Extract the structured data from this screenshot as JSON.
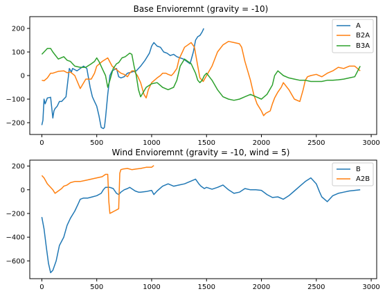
{
  "chart_data": [
    {
      "type": "line",
      "title": "Base Envioremnt (gravity = -10)",
      "xlabel": "",
      "ylabel": "",
      "xlim": [
        -110,
        3050
      ],
      "ylim": [
        -250,
        250
      ],
      "xticks": [
        0,
        500,
        1000,
        1500,
        2000,
        2500,
        3000
      ],
      "yticks": [
        -200,
        -100,
        0,
        100,
        200
      ],
      "legend_position": "top-right",
      "grid": false,
      "series": [
        {
          "name": "A",
          "color": "#1f77b4",
          "x": [
            0,
            10,
            20,
            30,
            50,
            80,
            100,
            110,
            120,
            140,
            160,
            180,
            200,
            220,
            250,
            270,
            280,
            300,
            320,
            350,
            380,
            410,
            440,
            460,
            480,
            500,
            520,
            540,
            560,
            570,
            580,
            600,
            610,
            620,
            640,
            660,
            680,
            700,
            720,
            750,
            780,
            820,
            860,
            900,
            940,
            980,
            1000,
            1020,
            1050,
            1080,
            1110,
            1140,
            1170,
            1200,
            1230,
            1260,
            1290,
            1320,
            1350,
            1380,
            1400,
            1420,
            1440,
            1460,
            1475
          ],
          "values": [
            -210,
            -190,
            -100,
            -120,
            -95,
            -92,
            -180,
            -150,
            -140,
            -130,
            -110,
            -110,
            -100,
            -90,
            30,
            15,
            30,
            25,
            20,
            30,
            40,
            30,
            -50,
            -90,
            -110,
            -130,
            -170,
            -220,
            -225,
            -220,
            -180,
            -80,
            -40,
            0,
            20,
            25,
            30,
            -5,
            -10,
            -5,
            10,
            15,
            20,
            40,
            65,
            95,
            125,
            140,
            125,
            120,
            100,
            95,
            85,
            90,
            80,
            75,
            70,
            60,
            50,
            100,
            150,
            165,
            170,
            185,
            200
          ]
        },
        {
          "name": "B2A",
          "color": "#ff7f0e",
          "x": [
            0,
            20,
            50,
            80,
            100,
            150,
            200,
            230,
            260,
            300,
            350,
            400,
            450,
            480,
            500,
            550,
            600,
            640,
            680,
            720,
            750,
            780,
            800,
            820,
            840,
            870,
            900,
            930,
            950,
            970,
            1000,
            1050,
            1080,
            1100,
            1130,
            1150,
            1180,
            1200,
            1230,
            1250,
            1280,
            1300,
            1330,
            1360,
            1390,
            1420,
            1440,
            1460,
            1470,
            1500,
            1550,
            1600,
            1650,
            1700,
            1750,
            1800,
            1820,
            1850,
            1900,
            1930,
            1960,
            2000,
            2020,
            2040,
            2080,
            2100,
            2120,
            2150,
            2180,
            2200,
            2250,
            2300,
            2350,
            2380,
            2400,
            2420,
            2450,
            2500,
            2550,
            2600,
            2650,
            2700,
            2750,
            2800,
            2850,
            2900
          ],
          "values": [
            -20,
            -22,
            -10,
            10,
            10,
            18,
            20,
            12,
            15,
            0,
            -55,
            -15,
            -15,
            10,
            40,
            60,
            75,
            40,
            25,
            10,
            5,
            -5,
            10,
            20,
            20,
            0,
            -30,
            -80,
            -95,
            -60,
            -30,
            -10,
            0,
            10,
            10,
            5,
            0,
            10,
            30,
            70,
            100,
            120,
            130,
            140,
            120,
            40,
            -10,
            -20,
            -25,
            0,
            40,
            100,
            130,
            145,
            140,
            135,
            120,
            60,
            -20,
            -80,
            -120,
            -150,
            -170,
            -160,
            -150,
            -120,
            -95,
            -70,
            -50,
            -30,
            -60,
            -100,
            -110,
            -60,
            -20,
            -5,
            0,
            5,
            -5,
            10,
            20,
            35,
            30,
            40,
            40,
            20
          ]
        },
        {
          "name": "B3A",
          "color": "#2ca02c",
          "x": [
            0,
            20,
            50,
            80,
            100,
            150,
            200,
            230,
            260,
            300,
            350,
            400,
            450,
            480,
            500,
            520,
            550,
            580,
            600,
            620,
            650,
            680,
            700,
            730,
            760,
            800,
            820,
            840,
            860,
            880,
            900,
            950,
            1000,
            1050,
            1100,
            1150,
            1200,
            1230,
            1260,
            1300,
            1330,
            1360,
            1380,
            1400,
            1420,
            1440,
            1460,
            1480,
            1500,
            1550,
            1600,
            1650,
            1700,
            1750,
            1800,
            1850,
            1900,
            1950,
            2000,
            2050,
            2100,
            2120,
            2150,
            2200,
            2250,
            2300,
            2350,
            2400,
            2450,
            2500,
            2550,
            2600,
            2650,
            2700,
            2750,
            2800,
            2850,
            2900
          ],
          "values": [
            90,
            100,
            115,
            115,
            100,
            70,
            80,
            65,
            60,
            40,
            35,
            35,
            50,
            60,
            75,
            60,
            30,
            0,
            -50,
            -20,
            30,
            50,
            55,
            75,
            80,
            95,
            90,
            40,
            0,
            -60,
            -90,
            -50,
            -35,
            -30,
            -50,
            -60,
            -50,
            -20,
            40,
            70,
            60,
            50,
            30,
            10,
            -20,
            -30,
            -20,
            0,
            10,
            -20,
            -60,
            -90,
            -100,
            -105,
            -100,
            -90,
            -80,
            -90,
            -100,
            -80,
            -40,
            0,
            20,
            0,
            -10,
            -15,
            -20,
            -20,
            -25,
            -25,
            -25,
            -20,
            -20,
            -18,
            -15,
            -10,
            -5,
            40
          ]
        }
      ]
    },
    {
      "type": "line",
      "title": "Wind Envioremnt  (gravity = -10, wind = 5)",
      "xlabel": "",
      "ylabel": "",
      "xlim": [
        -110,
        3050
      ],
      "ylim": [
        -750,
        250
      ],
      "xticks": [
        0,
        500,
        1000,
        1500,
        2000,
        2500,
        3000
      ],
      "yticks": [
        -600,
        -400,
        -200,
        0,
        200
      ],
      "legend_position": "top-right",
      "grid": false,
      "series": [
        {
          "name": "B",
          "color": "#1f77b4",
          "x": [
            0,
            20,
            40,
            60,
            80,
            100,
            130,
            160,
            200,
            230,
            260,
            300,
            330,
            350,
            380,
            420,
            460,
            500,
            540,
            560,
            580,
            600,
            620,
            650,
            680,
            700,
            720,
            750,
            780,
            800,
            850,
            880,
            900,
            950,
            1000,
            1020,
            1050,
            1100,
            1150,
            1200,
            1250,
            1300,
            1350,
            1400,
            1430,
            1450,
            1480,
            1500,
            1550,
            1600,
            1650,
            1700,
            1750,
            1800,
            1850,
            1900,
            1950,
            2000,
            2050,
            2100,
            2150,
            2200,
            2250,
            2300,
            2350,
            2400,
            2450,
            2500,
            2530,
            2550,
            2600,
            2650,
            2700,
            2750,
            2800,
            2850,
            2900
          ],
          "values": [
            -230,
            -330,
            -480,
            -620,
            -700,
            -680,
            -600,
            -470,
            -400,
            -300,
            -240,
            -180,
            -120,
            -80,
            -70,
            -70,
            -60,
            -50,
            -30,
            0,
            20,
            20,
            20,
            10,
            -30,
            -40,
            -20,
            0,
            10,
            20,
            -10,
            -20,
            -20,
            -15,
            -5,
            -40,
            -10,
            30,
            50,
            30,
            40,
            50,
            70,
            90,
            50,
            30,
            10,
            20,
            5,
            20,
            40,
            0,
            -30,
            -20,
            10,
            0,
            0,
            -5,
            -40,
            -65,
            -60,
            -80,
            -50,
            -10,
            30,
            70,
            100,
            50,
            -20,
            -60,
            -100,
            -50,
            -30,
            -20,
            -10,
            -5,
            0
          ]
        },
        {
          "name": "A2B",
          "color": "#ff7f0e",
          "x": [
            0,
            20,
            50,
            80,
            100,
            120,
            150,
            180,
            200,
            230,
            260,
            300,
            350,
            400,
            450,
            500,
            550,
            580,
            600,
            610,
            620,
            640,
            660,
            680,
            700,
            710,
            720,
            740,
            780,
            820,
            860,
            900,
            950,
            1000,
            1020
          ],
          "values": [
            120,
            100,
            50,
            20,
            0,
            -30,
            -10,
            10,
            30,
            40,
            60,
            70,
            70,
            80,
            90,
            100,
            110,
            130,
            130,
            -100,
            -200,
            -190,
            -180,
            -170,
            -160,
            140,
            170,
            175,
            180,
            170,
            175,
            180,
            190,
            190,
            205
          ]
        }
      ]
    }
  ]
}
